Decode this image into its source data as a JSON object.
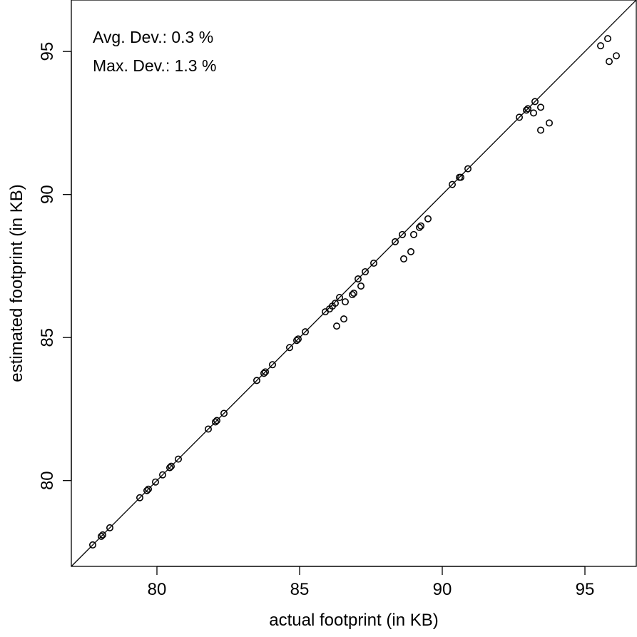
{
  "chart_data": {
    "type": "scatter",
    "title": "",
    "xlabel": "actual footprint (in KB)",
    "ylabel": "estimated footprint (in KB)",
    "xlim": [
      77,
      96.8
    ],
    "ylim": [
      77,
      96.8
    ],
    "x_ticks": [
      80,
      85,
      90,
      95
    ],
    "y_ticks": [
      80,
      85,
      90,
      95
    ],
    "grid": false,
    "reference_line": "y = x",
    "annotations": [
      "Avg. Dev.: 0.3 %",
      "Max. Dev.: 1.3 %"
    ],
    "series": [
      {
        "points": [
          [
            77.75,
            77.75
          ],
          [
            78.05,
            78.05
          ],
          [
            78.1,
            78.1
          ],
          [
            78.35,
            78.35
          ],
          [
            79.4,
            79.4
          ],
          [
            79.65,
            79.65
          ],
          [
            79.7,
            79.7
          ],
          [
            79.95,
            79.95
          ],
          [
            80.2,
            80.2
          ],
          [
            80.45,
            80.45
          ],
          [
            80.5,
            80.5
          ],
          [
            80.75,
            80.75
          ],
          [
            81.8,
            81.8
          ],
          [
            82.05,
            82.05
          ],
          [
            82.1,
            82.1
          ],
          [
            82.35,
            82.35
          ],
          [
            83.5,
            83.5
          ],
          [
            83.75,
            83.75
          ],
          [
            83.8,
            83.8
          ],
          [
            84.05,
            84.05
          ],
          [
            84.65,
            84.65
          ],
          [
            84.9,
            84.9
          ],
          [
            84.95,
            84.95
          ],
          [
            85.2,
            85.2
          ],
          [
            85.9,
            85.9
          ],
          [
            86.05,
            86.0
          ],
          [
            86.15,
            86.1
          ],
          [
            86.25,
            86.2
          ],
          [
            86.4,
            86.4
          ],
          [
            86.3,
            85.4
          ],
          [
            86.55,
            85.65
          ],
          [
            86.6,
            86.25
          ],
          [
            86.85,
            86.5
          ],
          [
            86.9,
            86.55
          ],
          [
            87.05,
            87.05
          ],
          [
            87.15,
            86.8
          ],
          [
            87.3,
            87.3
          ],
          [
            87.6,
            87.6
          ],
          [
            88.35,
            88.35
          ],
          [
            88.6,
            88.6
          ],
          [
            88.65,
            87.75
          ],
          [
            88.9,
            88.0
          ],
          [
            89.0,
            88.6
          ],
          [
            89.2,
            88.85
          ],
          [
            89.25,
            88.9
          ],
          [
            89.5,
            89.15
          ],
          [
            90.35,
            90.35
          ],
          [
            90.6,
            90.6
          ],
          [
            90.65,
            90.6
          ],
          [
            90.9,
            90.9
          ],
          [
            92.7,
            92.7
          ],
          [
            92.95,
            92.95
          ],
          [
            93.0,
            93.0
          ],
          [
            93.2,
            92.85
          ],
          [
            93.25,
            93.25
          ],
          [
            93.45,
            93.05
          ],
          [
            93.45,
            92.25
          ],
          [
            93.75,
            92.5
          ],
          [
            95.55,
            95.2
          ],
          [
            95.8,
            95.45
          ],
          [
            95.85,
            94.65
          ],
          [
            96.1,
            94.85
          ]
        ]
      }
    ]
  }
}
